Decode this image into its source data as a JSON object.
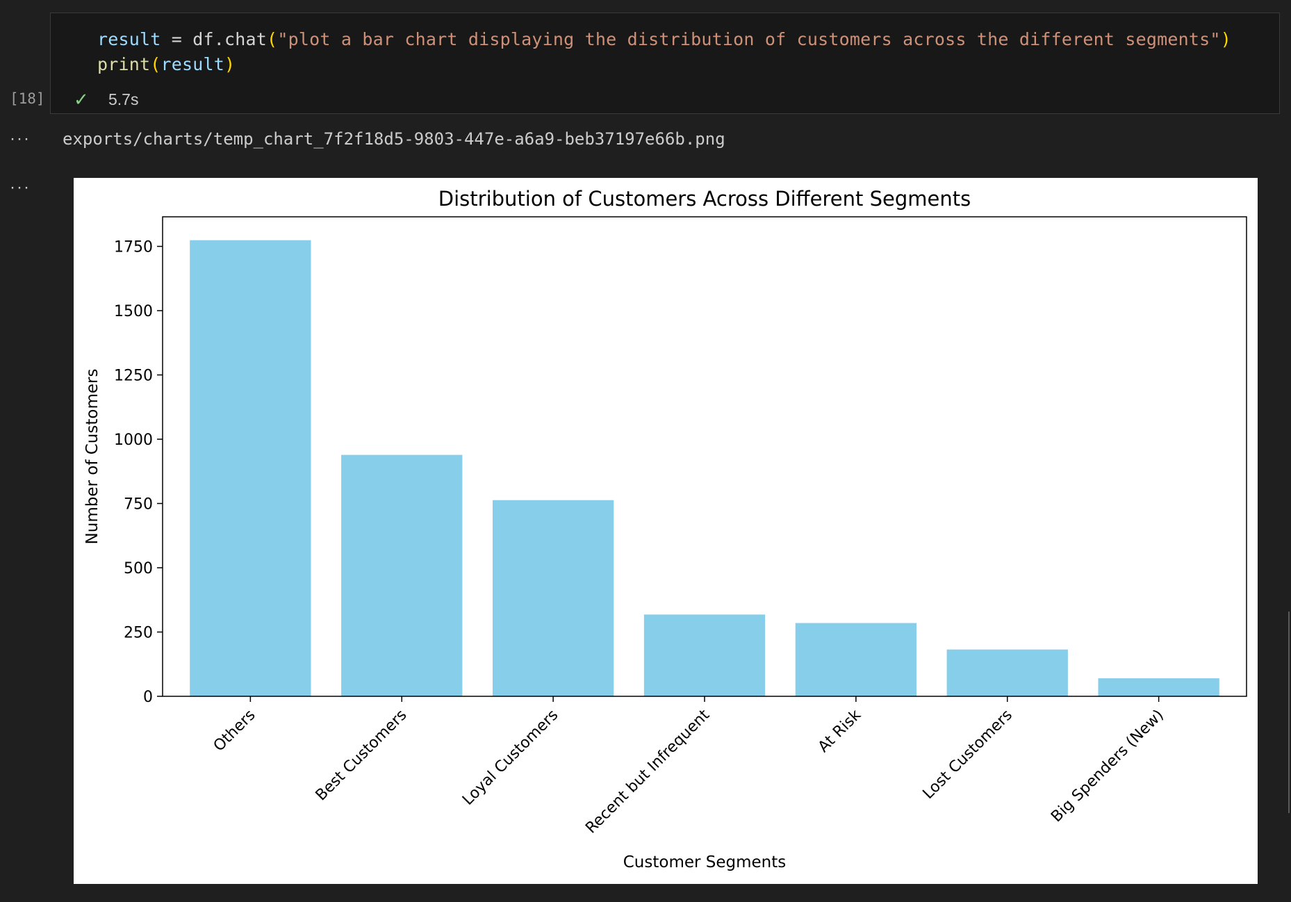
{
  "cell": {
    "code": {
      "line1": {
        "var": "result",
        "op": " = ",
        "obj": "df.chat",
        "open": "(",
        "str": "\"plot a bar chart displaying the distribution of customers across the different segments\"",
        "close": ")"
      },
      "line2": {
        "fn": "print",
        "open": "(",
        "arg": "result",
        "close": ")"
      }
    },
    "execution_count": "[18]",
    "status_icon": "check-icon",
    "duration": "5.7s"
  },
  "output": {
    "ellipsis": "···",
    "path": "exports/charts/temp_chart_7f2f18d5-9803-447e-a6a9-beb37197e66b.png"
  },
  "colors": {
    "bar": "#87ceeb",
    "background": "#1f1f1f"
  },
  "chart_data": {
    "type": "bar",
    "title": "Distribution of Customers Across Different Segments",
    "xlabel": "Customer Segments",
    "ylabel": "Number of Customers",
    "categories": [
      "Others",
      "Best Customers",
      "Loyal Customers",
      "Recent but Infrequent",
      "At Risk",
      "Lost Customers",
      "Big Spenders (New)"
    ],
    "values": [
      1774,
      939,
      763,
      318,
      285,
      182,
      70
    ],
    "yticks": [
      0,
      250,
      500,
      750,
      1000,
      1250,
      1500,
      1750
    ],
    "ylim": [
      0,
      1865
    ],
    "color": "#87ceeb",
    "grid": false
  }
}
